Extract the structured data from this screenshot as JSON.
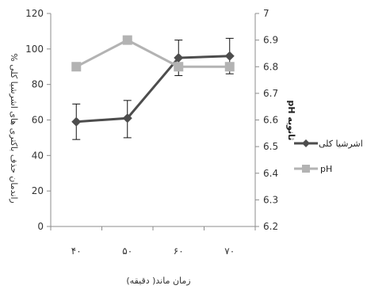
{
  "chart_data": {
    "type": "line",
    "categories": [
      "۴۰",
      "۵۰",
      "۶۰",
      "۷۰"
    ],
    "xlabel": "زمان ماند( دقیقه)",
    "ylabel_left": "% راندمان حذف باکتری های اشرشیا کلی",
    "ylabel_right": "pH ثانویه",
    "yleft": {
      "min": 0,
      "max": 120,
      "step": 20,
      "ticks": [
        "0",
        "20",
        "40",
        "60",
        "80",
        "100",
        "120"
      ]
    },
    "yright": {
      "min": 6.2,
      "max": 7.0,
      "step": 0.1,
      "ticks": [
        "6.2",
        "6.3",
        "6.4",
        "6.5",
        "6.6",
        "6.7",
        "6.8",
        "6.9",
        "7"
      ]
    },
    "grid": false,
    "legend_position": "right",
    "series": [
      {
        "name": "اشرشیا کلی",
        "axis": "left",
        "marker": "diamond",
        "color": "#4d4d4d",
        "values": [
          59,
          61,
          95,
          96
        ],
        "error_low": [
          49,
          50,
          85,
          86
        ],
        "error_high": [
          69,
          71,
          105,
          106
        ]
      },
      {
        "name": "pH",
        "axis": "right",
        "marker": "square",
        "color": "#b3b3b3",
        "values": [
          6.8,
          6.9,
          6.8,
          6.8
        ]
      }
    ]
  }
}
